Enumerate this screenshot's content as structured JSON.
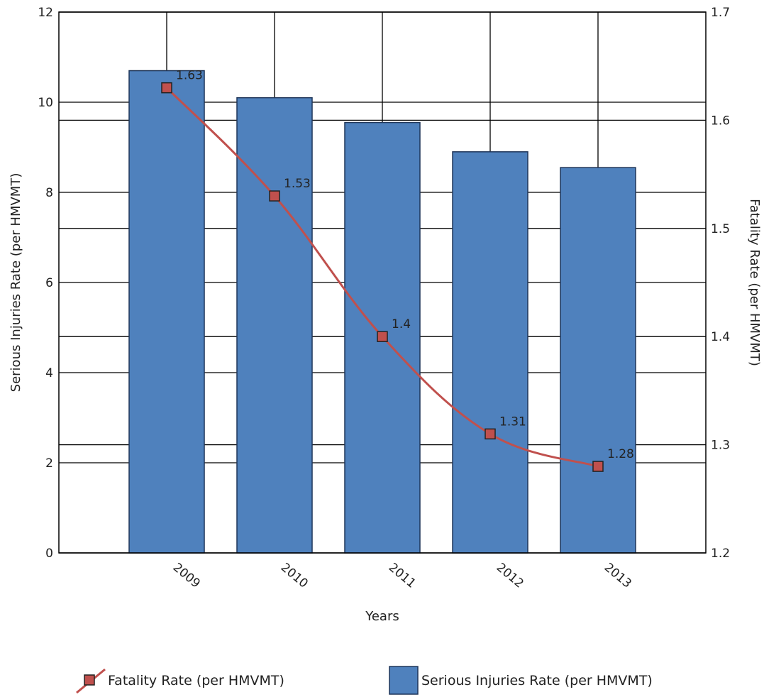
{
  "chart_data": {
    "type": "bar",
    "categories": [
      "2009",
      "2010",
      "2011",
      "2012",
      "2013"
    ],
    "series": [
      {
        "name": "Serious Injuries Rate (per HMVMT)",
        "type": "bar",
        "axis": "left",
        "values": [
          10.7,
          10.1,
          9.55,
          8.9,
          8.55
        ],
        "color": "#4f81bd"
      },
      {
        "name": "Fatality Rate (per HMVMT)",
        "type": "line",
        "axis": "right",
        "values": [
          1.63,
          1.53,
          1.4,
          1.31,
          1.28
        ],
        "labels": [
          "1.63",
          "1.53",
          "1.4",
          "1.31",
          "1.28"
        ],
        "color": "#c0504d"
      }
    ],
    "xlabel": "Years",
    "ylabel": "Serious Injuries Rate (per HMVMT)",
    "y2label": "Fatality Rate (per HMVMT)",
    "ylim": [
      0,
      12
    ],
    "y2lim": [
      1.2,
      1.7
    ],
    "yticks": [
      "0",
      "2",
      "4",
      "6",
      "8",
      "10",
      "12"
    ],
    "y2ticks": [
      "1.2",
      "1.3",
      "1.4",
      "1.5",
      "1.6",
      "1.7"
    ],
    "grid": true,
    "legend_position": "bottom"
  }
}
